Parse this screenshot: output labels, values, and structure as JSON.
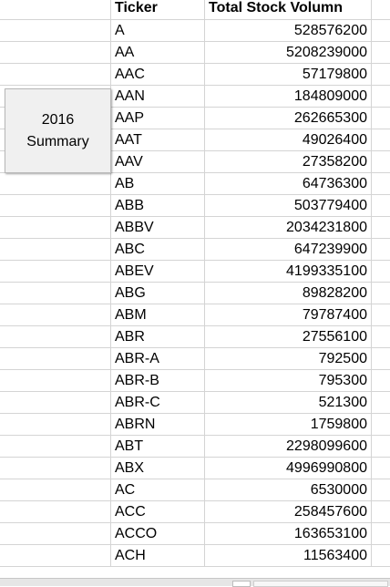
{
  "sheet": {
    "headers": {
      "ticker": "Ticker",
      "volume": "Total Stock Volumn"
    },
    "rows": [
      {
        "ticker": "A",
        "volume": "528576200"
      },
      {
        "ticker": "AA",
        "volume": "5208239000"
      },
      {
        "ticker": "AAC",
        "volume": "57179800"
      },
      {
        "ticker": "AAN",
        "volume": "184809000"
      },
      {
        "ticker": "AAP",
        "volume": "262665300"
      },
      {
        "ticker": "AAT",
        "volume": "49026400"
      },
      {
        "ticker": "AAV",
        "volume": "27358200"
      },
      {
        "ticker": "AB",
        "volume": "64736300"
      },
      {
        "ticker": "ABB",
        "volume": "503779400"
      },
      {
        "ticker": "ABBV",
        "volume": "2034231800"
      },
      {
        "ticker": "ABC",
        "volume": "647239900"
      },
      {
        "ticker": "ABEV",
        "volume": "4199335100"
      },
      {
        "ticker": "ABG",
        "volume": "89828200"
      },
      {
        "ticker": "ABM",
        "volume": "79787400"
      },
      {
        "ticker": "ABR",
        "volume": "27556100"
      },
      {
        "ticker": "ABR-A",
        "volume": "792500"
      },
      {
        "ticker": "ABR-B",
        "volume": "795300"
      },
      {
        "ticker": "ABR-C",
        "volume": "521300"
      },
      {
        "ticker": "ABRN",
        "volume": "1759800"
      },
      {
        "ticker": "ABT",
        "volume": "2298099600"
      },
      {
        "ticker": "ABX",
        "volume": "4996990800"
      },
      {
        "ticker": "AC",
        "volume": "6530000"
      },
      {
        "ticker": "ACC",
        "volume": "258457600"
      },
      {
        "ticker": "ACCO",
        "volume": "163653100"
      },
      {
        "ticker": "ACH",
        "volume": "11563400"
      }
    ]
  },
  "summary_button": {
    "label": "2016\nSummary"
  }
}
